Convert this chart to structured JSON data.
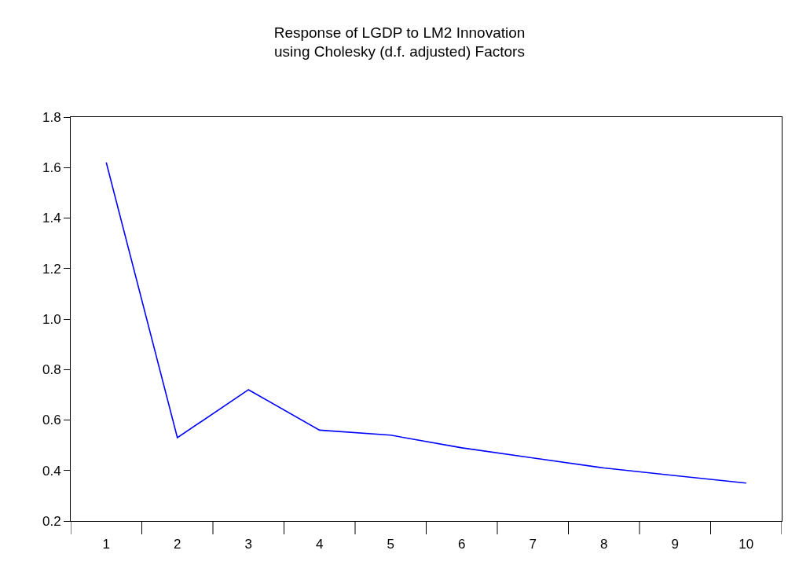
{
  "chart_data": {
    "type": "line",
    "title": "Response of LGDP to LM2 Innovation\nusing Cholesky (d.f. adjusted) Factors",
    "categories": [
      "1",
      "2",
      "3",
      "4",
      "5",
      "6",
      "7",
      "8",
      "9",
      "10"
    ],
    "series": [
      {
        "color": "#0000ff",
        "values": [
          1.62,
          0.53,
          0.72,
          0.56,
          0.54,
          0.49,
          0.45,
          0.41,
          0.38,
          0.35
        ]
      }
    ],
    "ylim": [
      0.2,
      1.8
    ],
    "yticks": [
      0.2,
      0.4,
      0.6,
      0.8,
      {
        "value": 1,
        "label": "1.0"
      },
      1.2,
      1.4,
      1.6,
      1.8
    ],
    "line_style": "solid"
  }
}
